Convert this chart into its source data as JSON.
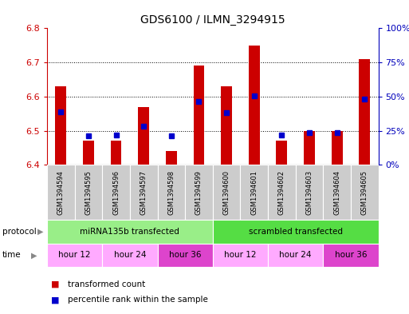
{
  "title": "GDS6100 / ILMN_3294915",
  "samples": [
    "GSM1394594",
    "GSM1394595",
    "GSM1394596",
    "GSM1394597",
    "GSM1394598",
    "GSM1394599",
    "GSM1394600",
    "GSM1394601",
    "GSM1394602",
    "GSM1394603",
    "GSM1394604",
    "GSM1394605"
  ],
  "red_values": [
    6.63,
    6.47,
    6.47,
    6.57,
    6.44,
    6.69,
    6.63,
    6.75,
    6.47,
    6.5,
    6.5,
    6.71
  ],
  "blue_values": [
    6.555,
    6.485,
    6.488,
    6.513,
    6.484,
    6.585,
    6.553,
    6.602,
    6.487,
    6.494,
    6.494,
    6.592
  ],
  "ylim_left": [
    6.4,
    6.8
  ],
  "ylim_right": [
    0,
    100
  ],
  "yticks_left": [
    6.4,
    6.5,
    6.6,
    6.7,
    6.8
  ],
  "yticks_right": [
    0,
    25,
    50,
    75,
    100
  ],
  "ytick_labels_right": [
    "0%",
    "25%",
    "50%",
    "75%",
    "100%"
  ],
  "bar_color": "#cc0000",
  "blue_color": "#0000cc",
  "bar_bottom": 6.4,
  "bar_width": 0.4,
  "protocol_groups": [
    {
      "label": "miRNA135b transfected",
      "start": 0,
      "end": 6,
      "color": "#99ee88"
    },
    {
      "label": "scrambled transfected",
      "start": 6,
      "end": 12,
      "color": "#55dd44"
    }
  ],
  "time_groups": [
    {
      "label": "hour 12",
      "start": 0,
      "end": 2,
      "color": "#ffaaff"
    },
    {
      "label": "hour 24",
      "start": 2,
      "end": 4,
      "color": "#ffaaff"
    },
    {
      "label": "hour 36",
      "start": 4,
      "end": 6,
      "color": "#dd44cc"
    },
    {
      "label": "hour 12",
      "start": 6,
      "end": 8,
      "color": "#ffaaff"
    },
    {
      "label": "hour 24",
      "start": 8,
      "end": 10,
      "color": "#ffaaff"
    },
    {
      "label": "hour 36",
      "start": 10,
      "end": 12,
      "color": "#dd44cc"
    }
  ],
  "legend_items": [
    {
      "color": "#cc0000",
      "label": "transformed count"
    },
    {
      "color": "#0000cc",
      "label": "percentile rank within the sample"
    }
  ],
  "bg_color": "#ffffff",
  "plot_bg": "#ffffff",
  "axis_left_color": "#cc0000",
  "axis_right_color": "#0000bb",
  "gsm_bg": "#cccccc",
  "gsm_fontsize": 6,
  "title_fontsize": 10,
  "tick_fontsize": 8,
  "label_fontsize": 8
}
